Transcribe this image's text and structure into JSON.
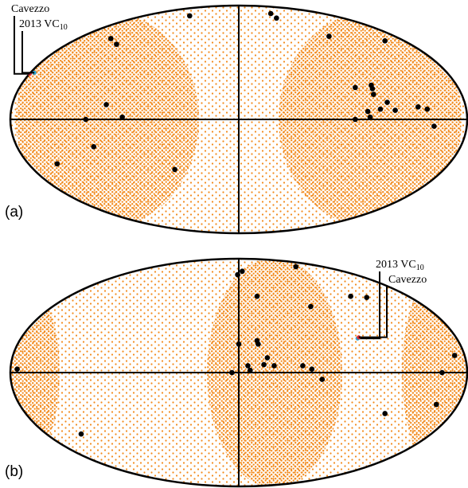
{
  "chart_data": [
    {
      "type": "scatter",
      "panel_label": "(a)",
      "xlim": [
        -2,
        2
      ],
      "ylim": [
        -1,
        1
      ],
      "series": [
        {
          "color": "#000000",
          "x": [
            -0.43,
            0.28,
            0.33,
            -1.12,
            -1.07,
            0.79,
            1.28,
            1.02,
            1.16,
            1.17,
            1.18,
            -1.16,
            1.3,
            1.24,
            1.37,
            1.57,
            1.65,
            1.13,
            1.15,
            -1.34,
            -1.02,
            1.02,
            1.71,
            -1.27,
            -1.59,
            -0.56
          ],
          "values": [
            0.91,
            0.93,
            0.89,
            0.71,
            0.66,
            0.73,
            0.69,
            0.28,
            0.3,
            0.27,
            0.22,
            0.13,
            0.15,
            0.09,
            0.08,
            0.11,
            0.09,
            0.07,
            0.02,
            0.0,
            0.02,
            0.0,
            -0.06,
            -0.24,
            -0.39,
            -0.44
          ]
        },
        {
          "name": "Cavezzo",
          "color": "#e0303a",
          "x": [
            -1.83
          ],
          "values": [
            0.4
          ]
        },
        {
          "name": "2013 VC10",
          "color": "#2ea8d8",
          "x": [
            -1.79
          ],
          "values": [
            0.41
          ]
        }
      ]
    },
    {
      "type": "scatter",
      "panel_label": "(b)",
      "xlim": [
        -2,
        2
      ],
      "ylim": [
        -1,
        1
      ],
      "series": [
        {
          "color": "#000000",
          "x": [
            -0.01,
            0.03,
            0.5,
            0.16,
            0.63,
            0.98,
            1.12,
            0.0,
            0.16,
            0.17,
            0.25,
            0.31,
            0.08,
            0.1,
            0.22,
            0.56,
            0.64,
            -0.06,
            0.73,
            -1.94,
            1.78,
            1.89,
            1.73,
            1.28,
            -1.38
          ],
          "values": [
            0.86,
            0.89,
            0.93,
            0.67,
            0.58,
            0.67,
            0.66,
            0.25,
            0.28,
            0.25,
            0.13,
            0.06,
            0.06,
            0.02,
            0.07,
            0.06,
            0.03,
            0.0,
            -0.06,
            0.03,
            0.0,
            0.15,
            -0.28,
            -0.36,
            -0.54
          ]
        },
        {
          "name": "2013 VC10",
          "color": "#2ea8d8",
          "x": [
            1.04
          ],
          "values": [
            0.3
          ]
        },
        {
          "name": "Cavezzo",
          "color": "#e0303a",
          "x": [
            1.05
          ],
          "values": [
            0.31
          ]
        }
      ]
    }
  ]
}
